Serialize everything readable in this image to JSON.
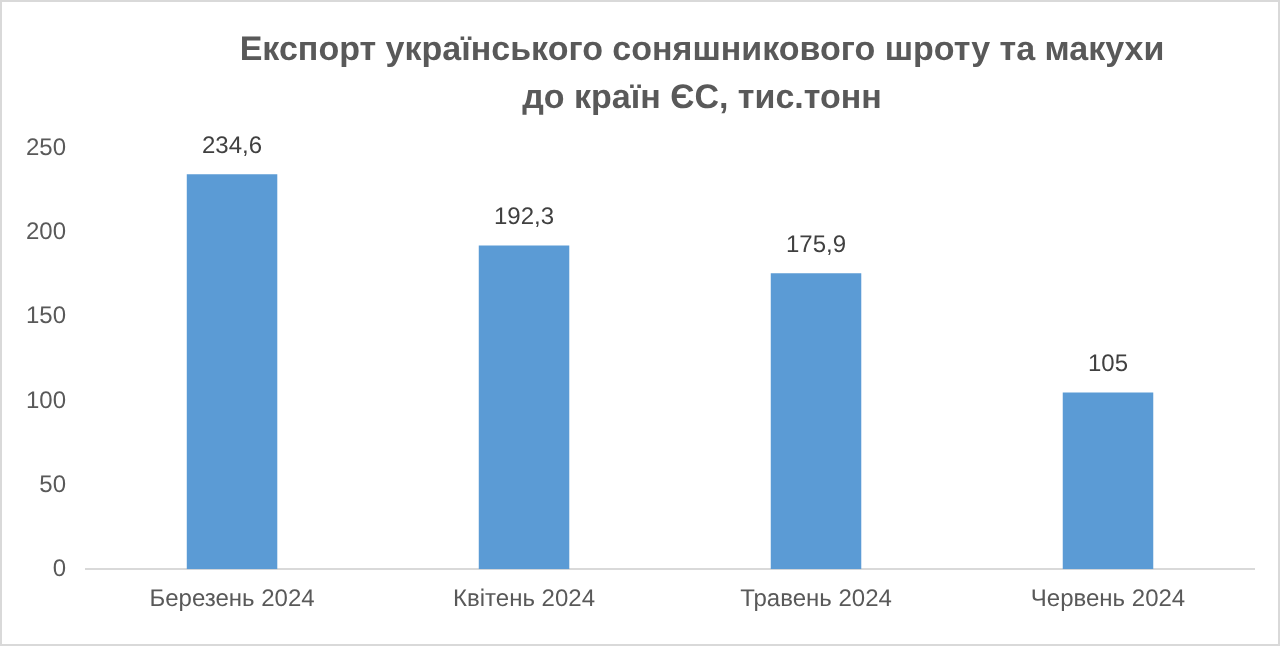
{
  "chart_data": {
    "type": "bar",
    "title": "Експорт українського соняшникового шроту та макухи до країн ЄС, тис.тонн",
    "categories": [
      "Березень 2024",
      "Квітень 2024",
      "Травень 2024",
      "Червень 2024"
    ],
    "values": [
      234.6,
      192.3,
      175.9,
      105
    ],
    "value_labels": [
      "234,6",
      "192,3",
      "175,9",
      "105"
    ],
    "color": "#5b9bd5",
    "ylim": [
      0,
      250
    ],
    "yticks": [
      0,
      50,
      100,
      150,
      200,
      250
    ],
    "grid": false,
    "legend": false
  }
}
